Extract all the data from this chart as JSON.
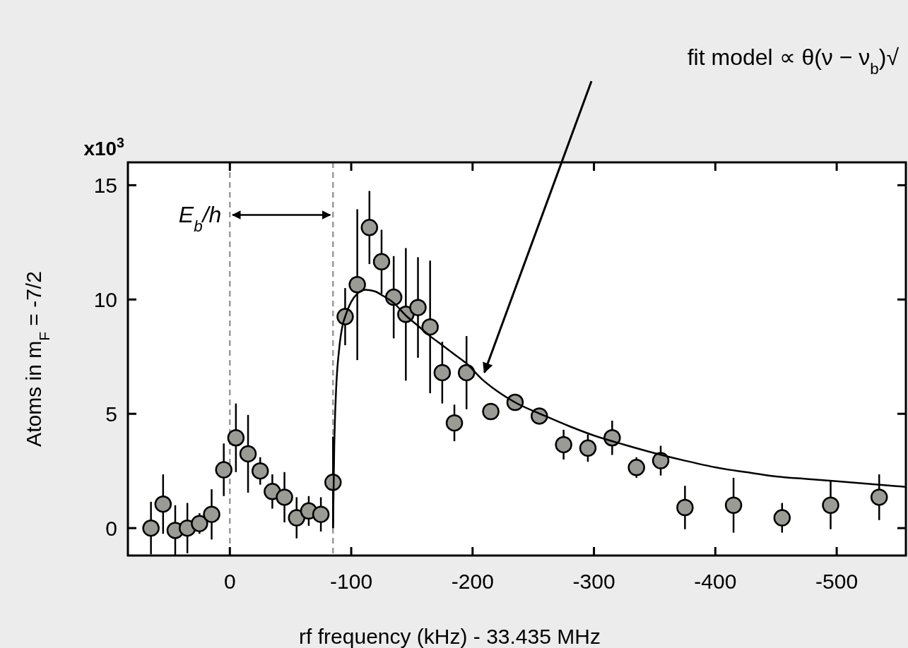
{
  "chart_data": {
    "type": "scatter",
    "xlabel": "rf frequency (kHz) - 33.435 MHz",
    "ylabel": "Atoms in m$_{F}$ = -7/2",
    "xlim": [
      84,
      -557
    ],
    "xticks": [
      0,
      -100,
      -200,
      -300,
      -400,
      -500
    ],
    "ylim": [
      -1.2,
      16
    ],
    "yticks": [
      0,
      5,
      10,
      15
    ],
    "grid": false,
    "series": [
      {
        "color": "#9a9b95",
        "marker": "circle",
        "x": [
          65,
          55,
          45,
          35,
          25,
          15,
          5,
          -5,
          -15,
          -25,
          -35,
          -45,
          -55,
          -65,
          -75,
          -85,
          -95,
          -105,
          -115,
          -125,
          -135,
          -145,
          -155,
          -165,
          -175,
          -185,
          -195,
          -215,
          -235,
          -255,
          -275,
          -295,
          -315,
          -335,
          -355,
          -375,
          -415,
          -455,
          -495,
          -535
        ],
        "values": [
          0,
          1.05,
          -0.1,
          0,
          0.2,
          0.6,
          2.55,
          3.95,
          3.25,
          2.5,
          1.6,
          1.35,
          0.45,
          0.75,
          0.6,
          2.0,
          9.25,
          10.65,
          13.15,
          11.65,
          10.1,
          9.35,
          9.65,
          8.8,
          6.8,
          4.6,
          6.8,
          5.1,
          5.5,
          4.9,
          3.65,
          3.5,
          3.95,
          2.65,
          2.95,
          0.9,
          1.0,
          0.45,
          1.0,
          1.35
        ],
        "errors": [
          1.15,
          1.3,
          1.1,
          1.1,
          0.45,
          1.1,
          1.15,
          1.5,
          1.7,
          0.6,
          0.75,
          1.1,
          0.9,
          0.65,
          0.75,
          2.0,
          1.25,
          3.3,
          1.6,
          1.4,
          1.8,
          2.9,
          2.2,
          2.9,
          1.35,
          0.8,
          1.6,
          null,
          null,
          null,
          0.65,
          0.6,
          0.75,
          0.45,
          0.65,
          0.95,
          1.2,
          0.65,
          1.05,
          1.0
        ]
      },
      {
        "type": "line",
        "color": "#000000",
        "marker": "none",
        "line_style": "solid",
        "x": [
          -85,
          -86,
          -87.5,
          -90,
          -93,
          -95,
          -100,
          -105,
          -112,
          -120,
          -125,
          -135,
          -145,
          -155,
          -165,
          -175,
          -185,
          -195,
          -208,
          -220,
          -235,
          -260,
          -280,
          -300,
          -325,
          -350,
          -375,
          -400,
          -425,
          -450,
          -475,
          -500,
          -530,
          -557
        ],
        "values": [
          0,
          3.5,
          6,
          7.8,
          8.9,
          9.25,
          9.9,
          10.25,
          10.43,
          10.35,
          10.2,
          9.85,
          9.3,
          8.85,
          8.4,
          8.0,
          7.6,
          7.2,
          6.5,
          6.0,
          5.5,
          4.9,
          4.45,
          4.05,
          3.65,
          3.28,
          2.95,
          2.66,
          2.45,
          2.26,
          2.15,
          2.05,
          1.92,
          1.8
        ]
      }
    ],
    "ref_lines": [
      {
        "axis": "x",
        "value": 0,
        "color": "#9a9a9a",
        "line_style": "dashed"
      },
      {
        "axis": "x",
        "value": -85,
        "color": "#9a9a9a",
        "line_style": "dashed"
      }
    ],
    "annotations": [
      "x10$^{3}$",
      {
        "text": "E$_{b}$/h",
        "x": 0,
        "y": 13.7
      },
      "fit model ∝ θ(ν − ν$_{b}$)√"
    ]
  }
}
